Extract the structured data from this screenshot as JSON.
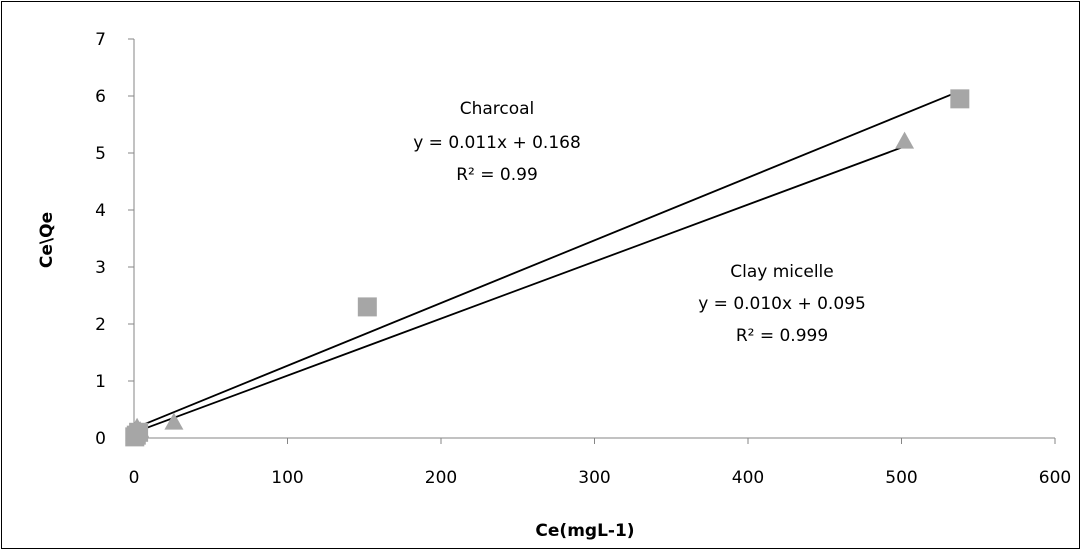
{
  "chart_data": {
    "type": "scatter",
    "title": "",
    "xlabel": "Ce(mgL-1)",
    "ylabel": "Ce\\Qe",
    "xlim": [
      0,
      600
    ],
    "ylim": [
      0,
      7
    ],
    "xticks": [
      "0",
      "100",
      "200",
      "300",
      "400",
      "500",
      "600"
    ],
    "yticks": [
      "0",
      "1",
      "2",
      "3",
      "4",
      "5",
      "6",
      "7"
    ],
    "grid": false,
    "legend": "none",
    "series": [
      {
        "name": "Charcoal",
        "marker": "square",
        "color": "#a6a6a6",
        "points": [
          {
            "x": 0.5,
            "y": 0.02
          },
          {
            "x": 1.5,
            "y": 0.05
          },
          {
            "x": 3,
            "y": 0.1
          },
          {
            "x": 152,
            "y": 2.3
          },
          {
            "x": 538,
            "y": 5.95
          }
        ],
        "trendline": {
          "slope": 0.011,
          "intercept": 0.168,
          "x_range": [
            0,
            538
          ]
        },
        "annotation": {
          "name": "Charcoal",
          "equation": "y = 0.011x + 0.168",
          "r2": "R² = 0.99"
        }
      },
      {
        "name": "Clay micelle",
        "marker": "triangle",
        "color": "#a6a6a6",
        "points": [
          {
            "x": 0.5,
            "y": 0.08
          },
          {
            "x": 2,
            "y": 0.18
          },
          {
            "x": 4,
            "y": 0.12
          },
          {
            "x": 26,
            "y": 0.27
          },
          {
            "x": 502,
            "y": 5.2
          }
        ],
        "trendline": {
          "slope": 0.01,
          "intercept": 0.095,
          "x_range": [
            0,
            502
          ]
        },
        "annotation": {
          "name": "Clay micelle",
          "equation": "y = 0.010x + 0.095",
          "r2": "R² = 0.999"
        }
      }
    ]
  }
}
